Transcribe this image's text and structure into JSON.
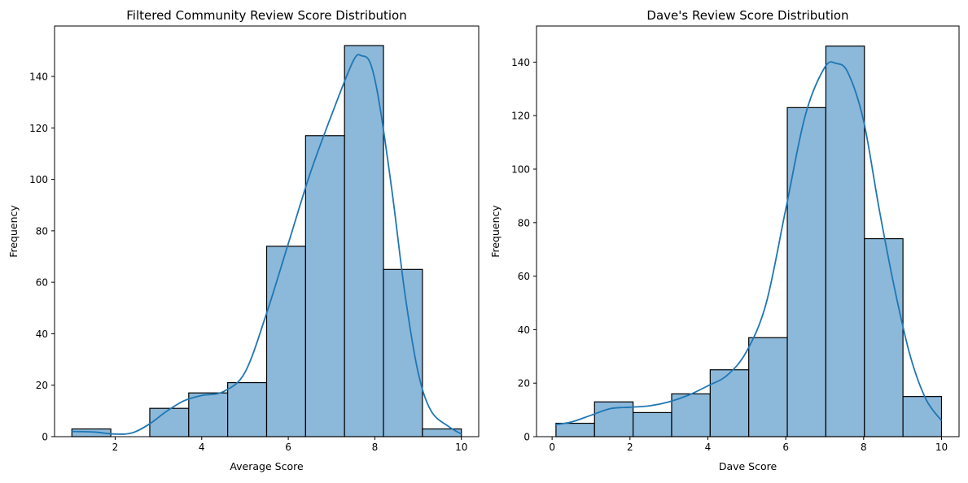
{
  "chart_data": [
    {
      "type": "bar",
      "title": "Filtered Community Review Score Distribution",
      "xlabel": "Average Score",
      "ylabel": "Frequency",
      "xlim": [
        0.6,
        10.4
      ],
      "ylim": [
        0,
        159.6
      ],
      "xticks": [
        2,
        4,
        6,
        8,
        10
      ],
      "yticks": [
        0,
        20,
        40,
        60,
        80,
        100,
        120,
        140
      ],
      "bins": [
        {
          "x0": 1.0,
          "x1": 1.9,
          "count": 3
        },
        {
          "x0": 1.9,
          "x1": 2.8,
          "count": 0
        },
        {
          "x0": 2.8,
          "x1": 3.7,
          "count": 11
        },
        {
          "x0": 3.7,
          "x1": 4.6,
          "count": 17
        },
        {
          "x0": 4.6,
          "x1": 5.5,
          "count": 21
        },
        {
          "x0": 5.5,
          "x1": 6.4,
          "count": 74
        },
        {
          "x0": 6.4,
          "x1": 7.3,
          "count": 117
        },
        {
          "x0": 7.3,
          "x1": 8.2,
          "count": 152
        },
        {
          "x0": 8.2,
          "x1": 9.1,
          "count": 65
        },
        {
          "x0": 9.1,
          "x1": 10.0,
          "count": 3
        }
      ],
      "kde": [
        [
          1.0,
          2.0
        ],
        [
          1.5,
          1.8
        ],
        [
          2.0,
          1.0
        ],
        [
          2.4,
          1.5
        ],
        [
          2.8,
          5.0
        ],
        [
          3.2,
          10.0
        ],
        [
          3.6,
          14.0
        ],
        [
          4.0,
          16.0
        ],
        [
          4.5,
          17.5
        ],
        [
          5.0,
          25.0
        ],
        [
          5.5,
          48.0
        ],
        [
          6.0,
          75.0
        ],
        [
          6.5,
          102.0
        ],
        [
          7.0,
          125.0
        ],
        [
          7.5,
          146.0
        ],
        [
          7.7,
          148.0
        ],
        [
          7.9,
          145.0
        ],
        [
          8.1,
          130.0
        ],
        [
          8.4,
          95.0
        ],
        [
          8.7,
          55.0
        ],
        [
          9.0,
          25.0
        ],
        [
          9.3,
          10.0
        ],
        [
          9.7,
          4.0
        ],
        [
          10.0,
          1.0
        ]
      ],
      "colors": {
        "bar_fill": "#8cb8da",
        "bar_edge": "#000000",
        "kde": "#1f77b4"
      }
    },
    {
      "type": "bar",
      "title": "Dave's Review Score Distribution",
      "xlabel": "Dave Score",
      "ylabel": "Frequency",
      "xlim": [
        -0.4,
        10.45
      ],
      "ylim": [
        0,
        153.5
      ],
      "xticks": [
        0,
        2,
        4,
        6,
        8,
        10
      ],
      "yticks": [
        0,
        20,
        40,
        60,
        80,
        100,
        120,
        140
      ],
      "bins": [
        {
          "x0": 0.1,
          "x1": 1.09,
          "count": 5
        },
        {
          "x0": 1.09,
          "x1": 2.08,
          "count": 13
        },
        {
          "x0": 2.08,
          "x1": 3.07,
          "count": 9
        },
        {
          "x0": 3.07,
          "x1": 4.06,
          "count": 16
        },
        {
          "x0": 4.06,
          "x1": 5.05,
          "count": 25
        },
        {
          "x0": 5.05,
          "x1": 6.04,
          "count": 37
        },
        {
          "x0": 6.04,
          "x1": 7.03,
          "count": 123
        },
        {
          "x0": 7.03,
          "x1": 8.02,
          "count": 146
        },
        {
          "x0": 8.02,
          "x1": 9.01,
          "count": 74
        },
        {
          "x0": 9.01,
          "x1": 10.0,
          "count": 15
        }
      ],
      "kde": [
        [
          0.1,
          4.5
        ],
        [
          0.5,
          5.5
        ],
        [
          1.0,
          8.0
        ],
        [
          1.5,
          10.5
        ],
        [
          2.0,
          11.0
        ],
        [
          2.5,
          11.5
        ],
        [
          3.0,
          13.0
        ],
        [
          3.5,
          15.5
        ],
        [
          4.0,
          19.0
        ],
        [
          4.5,
          23.0
        ],
        [
          5.0,
          32.0
        ],
        [
          5.5,
          50.0
        ],
        [
          6.0,
          85.0
        ],
        [
          6.5,
          120.0
        ],
        [
          7.0,
          138.0
        ],
        [
          7.3,
          139.5
        ],
        [
          7.6,
          136.0
        ],
        [
          8.0,
          118.0
        ],
        [
          8.4,
          85.0
        ],
        [
          8.8,
          55.0
        ],
        [
          9.2,
          30.0
        ],
        [
          9.6,
          14.0
        ],
        [
          10.0,
          6.0
        ]
      ],
      "colors": {
        "bar_fill": "#8cb8da",
        "bar_edge": "#000000",
        "kde": "#1f77b4"
      }
    }
  ]
}
